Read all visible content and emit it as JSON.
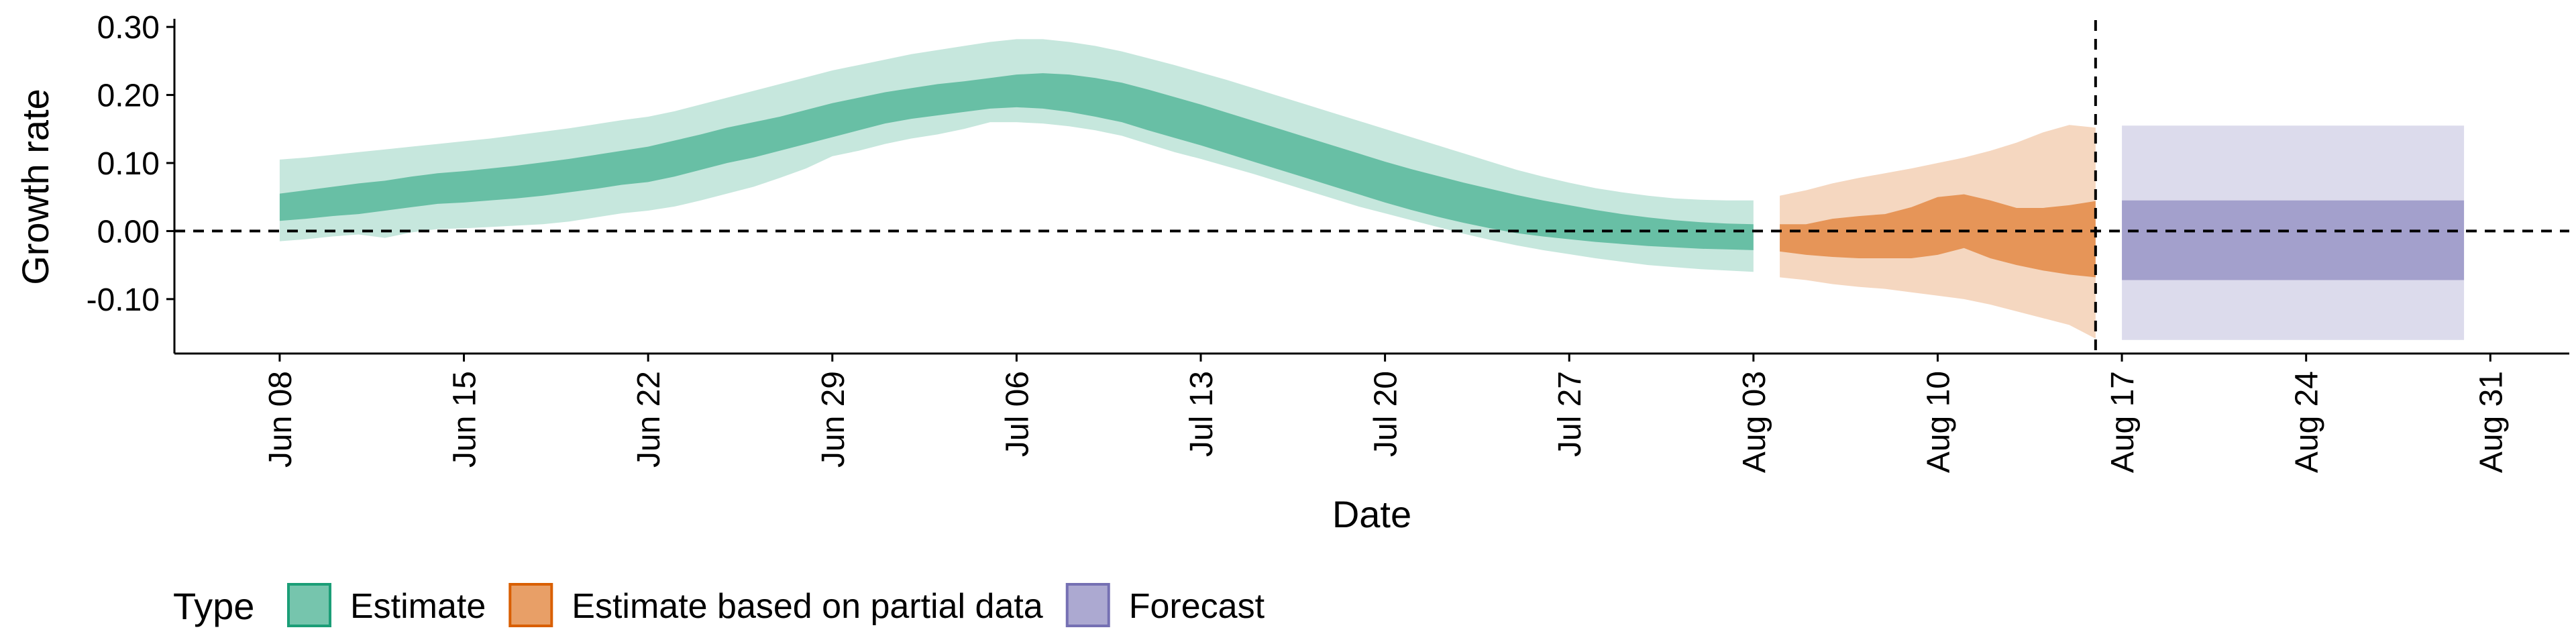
{
  "chart_data": {
    "type": "area",
    "xlabel": "Date",
    "ylabel": "Growth rate",
    "ylim": [
      -0.18,
      0.31
    ],
    "y_ticks": [
      -0.1,
      0.0,
      0.1,
      0.2,
      0.3
    ],
    "y_tick_labels": [
      "-0.10",
      "0.00",
      "0.10",
      "0.20",
      "0.30"
    ],
    "x_ticks": [
      "2020-06-08",
      "2020-06-15",
      "2020-06-22",
      "2020-06-29",
      "2020-07-06",
      "2020-07-13",
      "2020-07-20",
      "2020-07-27",
      "2020-08-03",
      "2020-08-10",
      "2020-08-17",
      "2020-08-24",
      "2020-08-31"
    ],
    "x_tick_labels": [
      "Jun 08",
      "Jun 15",
      "Jun 22",
      "Jun 29",
      "Jul 06",
      "Jul 13",
      "Jul 20",
      "Jul 27",
      "Aug 03",
      "Aug 10",
      "Aug 17",
      "Aug 24",
      "Aug 31"
    ],
    "xlim": [
      "2020-06-04",
      "2020-09-03"
    ],
    "hlines": [
      0
    ],
    "vlines": [
      "2020-08-16"
    ],
    "grid": false,
    "legend_title": "Type",
    "legend_position": "bottom-left",
    "series": [
      {
        "name": "Estimate",
        "color": "#1b9e77",
        "dates": [
          "2020-06-08",
          "2020-06-09",
          "2020-06-10",
          "2020-06-11",
          "2020-06-12",
          "2020-06-13",
          "2020-06-14",
          "2020-06-15",
          "2020-06-16",
          "2020-06-17",
          "2020-06-18",
          "2020-06-19",
          "2020-06-20",
          "2020-06-21",
          "2020-06-22",
          "2020-06-23",
          "2020-06-24",
          "2020-06-25",
          "2020-06-26",
          "2020-06-27",
          "2020-06-28",
          "2020-06-29",
          "2020-06-30",
          "2020-07-01",
          "2020-07-02",
          "2020-07-03",
          "2020-07-04",
          "2020-07-05",
          "2020-07-06",
          "2020-07-07",
          "2020-07-08",
          "2020-07-09",
          "2020-07-10",
          "2020-07-11",
          "2020-07-12",
          "2020-07-13",
          "2020-07-14",
          "2020-07-15",
          "2020-07-16",
          "2020-07-17",
          "2020-07-18",
          "2020-07-19",
          "2020-07-20",
          "2020-07-21",
          "2020-07-22",
          "2020-07-23",
          "2020-07-24",
          "2020-07-25",
          "2020-07-26",
          "2020-07-27",
          "2020-07-28",
          "2020-07-29",
          "2020-07-30",
          "2020-07-31",
          "2020-08-01",
          "2020-08-02",
          "2020-08-03"
        ],
        "lower_90": [
          -0.015,
          -0.012,
          -0.008,
          -0.005,
          -0.01,
          -0.002,
          0.003,
          0.004,
          0.006,
          0.008,
          0.01,
          0.014,
          0.02,
          0.026,
          0.03,
          0.036,
          0.045,
          0.055,
          0.065,
          0.078,
          0.092,
          0.11,
          0.118,
          0.128,
          0.136,
          0.142,
          0.15,
          0.16,
          0.16,
          0.158,
          0.154,
          0.148,
          0.14,
          0.128,
          0.116,
          0.106,
          0.095,
          0.084,
          0.072,
          0.06,
          0.048,
          0.036,
          0.026,
          0.016,
          0.006,
          -0.004,
          -0.013,
          -0.021,
          -0.028,
          -0.034,
          -0.04,
          -0.045,
          -0.05,
          -0.053,
          -0.056,
          -0.058,
          -0.06
        ],
        "lower_50": [
          0.015,
          0.018,
          0.022,
          0.025,
          0.03,
          0.035,
          0.04,
          0.042,
          0.045,
          0.048,
          0.052,
          0.057,
          0.062,
          0.068,
          0.072,
          0.08,
          0.09,
          0.1,
          0.108,
          0.118,
          0.128,
          0.138,
          0.148,
          0.158,
          0.165,
          0.17,
          0.175,
          0.18,
          0.182,
          0.18,
          0.175,
          0.168,
          0.16,
          0.148,
          0.137,
          0.126,
          0.114,
          0.102,
          0.09,
          0.078,
          0.066,
          0.054,
          0.042,
          0.031,
          0.021,
          0.012,
          0.004,
          -0.003,
          -0.008,
          -0.012,
          -0.016,
          -0.019,
          -0.022,
          -0.024,
          -0.026,
          -0.027,
          -0.028
        ],
        "upper_50": [
          0.055,
          0.06,
          0.065,
          0.07,
          0.074,
          0.08,
          0.085,
          0.088,
          0.092,
          0.096,
          0.101,
          0.106,
          0.112,
          0.118,
          0.124,
          0.133,
          0.142,
          0.152,
          0.16,
          0.168,
          0.178,
          0.188,
          0.196,
          0.204,
          0.21,
          0.216,
          0.22,
          0.225,
          0.23,
          0.232,
          0.23,
          0.225,
          0.218,
          0.208,
          0.197,
          0.186,
          0.174,
          0.162,
          0.15,
          0.138,
          0.126,
          0.114,
          0.102,
          0.091,
          0.081,
          0.071,
          0.062,
          0.053,
          0.045,
          0.038,
          0.031,
          0.025,
          0.02,
          0.016,
          0.013,
          0.011,
          0.01
        ],
        "upper_90": [
          0.105,
          0.108,
          0.112,
          0.116,
          0.12,
          0.124,
          0.128,
          0.132,
          0.136,
          0.141,
          0.146,
          0.151,
          0.157,
          0.163,
          0.168,
          0.176,
          0.186,
          0.196,
          0.206,
          0.216,
          0.226,
          0.236,
          0.244,
          0.252,
          0.26,
          0.266,
          0.272,
          0.278,
          0.282,
          0.282,
          0.278,
          0.272,
          0.264,
          0.254,
          0.244,
          0.233,
          0.222,
          0.21,
          0.198,
          0.186,
          0.174,
          0.162,
          0.15,
          0.138,
          0.126,
          0.114,
          0.102,
          0.09,
          0.08,
          0.071,
          0.063,
          0.057,
          0.052,
          0.048,
          0.046,
          0.045,
          0.045
        ]
      },
      {
        "name": "Estimate based on partial data",
        "color": "#d95f02",
        "dates": [
          "2020-08-04",
          "2020-08-05",
          "2020-08-06",
          "2020-08-07",
          "2020-08-08",
          "2020-08-09",
          "2020-08-10",
          "2020-08-11",
          "2020-08-12",
          "2020-08-13",
          "2020-08-14",
          "2020-08-15",
          "2020-08-16"
        ],
        "lower_90": [
          -0.068,
          -0.072,
          -0.078,
          -0.082,
          -0.085,
          -0.09,
          -0.095,
          -0.1,
          -0.108,
          -0.118,
          -0.128,
          -0.138,
          -0.158
        ],
        "lower_50": [
          -0.03,
          -0.035,
          -0.038,
          -0.04,
          -0.04,
          -0.04,
          -0.035,
          -0.025,
          -0.04,
          -0.05,
          -0.058,
          -0.064,
          -0.068
        ],
        "upper_50": [
          0.01,
          0.01,
          0.018,
          0.022,
          0.025,
          0.035,
          0.05,
          0.054,
          0.045,
          0.034,
          0.034,
          0.038,
          0.044
        ],
        "upper_90": [
          0.052,
          0.06,
          0.07,
          0.078,
          0.085,
          0.092,
          0.1,
          0.108,
          0.118,
          0.13,
          0.145,
          0.156,
          0.152
        ]
      },
      {
        "name": "Forecast",
        "color": "#7570b3",
        "dates": [
          "2020-08-17",
          "2020-08-30"
        ],
        "lower_90": [
          -0.16,
          -0.16
        ],
        "lower_50": [
          -0.072,
          -0.072
        ],
        "upper_50": [
          0.045,
          0.045
        ],
        "upper_90": [
          0.155,
          0.155
        ]
      }
    ]
  }
}
